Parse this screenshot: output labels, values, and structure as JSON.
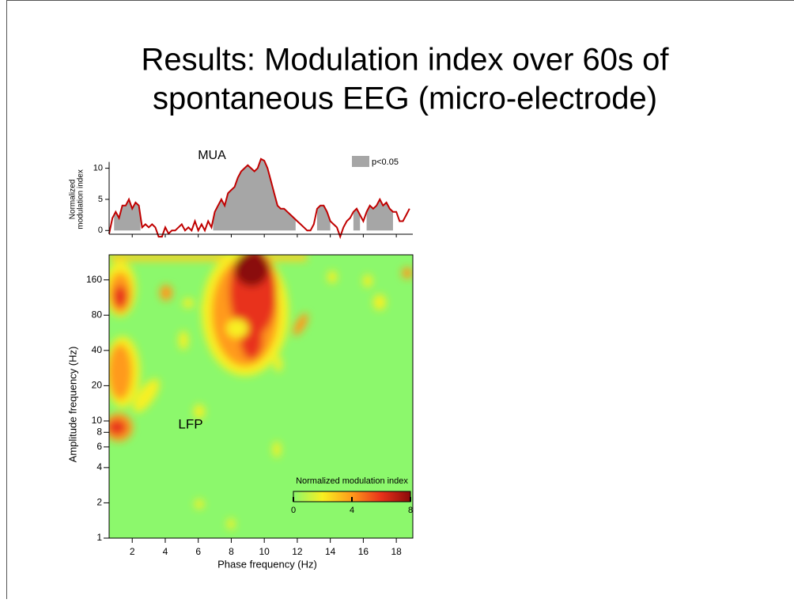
{
  "title": [
    "Results: Modulation index over 60s of",
    "spontaneous EEG (micro-electrode)"
  ],
  "chart_data": [
    {
      "type": "area",
      "annotation": "MUA",
      "ylabel": [
        "Normalized",
        "modulation index"
      ],
      "x": [
        0.6,
        0.8,
        1,
        1.2,
        1.4,
        1.6,
        1.8,
        2,
        2.2,
        2.4,
        2.6,
        2.8,
        3,
        3.2,
        3.4,
        3.6,
        3.8,
        4,
        4.2,
        4.4,
        4.6,
        4.8,
        5,
        5.2,
        5.4,
        5.6,
        5.8,
        6,
        6.2,
        6.4,
        6.6,
        6.8,
        7,
        7.2,
        7.4,
        7.6,
        7.8,
        8,
        8.2,
        8.4,
        8.6,
        8.8,
        9,
        9.2,
        9.4,
        9.6,
        9.8,
        10,
        10.2,
        10.4,
        10.6,
        10.8,
        11,
        11.2,
        11.4,
        11.6,
        11.8,
        12,
        12.2,
        12.4,
        12.6,
        12.8,
        13,
        13.2,
        13.4,
        13.6,
        13.8,
        14,
        14.2,
        14.4,
        14.6,
        14.8,
        15,
        15.2,
        15.4,
        15.6,
        15.8,
        16,
        16.2,
        16.4,
        16.6,
        16.8,
        17,
        17.2,
        17.4,
        17.6,
        17.8,
        18,
        18.2,
        18.4,
        18.6,
        18.8
      ],
      "series": [
        {
          "color": "#c00000",
          "values": [
            -0.5,
            2,
            3,
            2,
            4,
            4,
            5,
            3.5,
            4.5,
            4,
            0.5,
            1,
            0.5,
            1,
            0.5,
            -1,
            -1,
            0.5,
            -0.5,
            0,
            0,
            0.5,
            1,
            0,
            0.5,
            0,
            1.5,
            0,
            1,
            0,
            1.5,
            0.5,
            3,
            4,
            5,
            4,
            6,
            6.5,
            7,
            8.5,
            9.5,
            10,
            10.5,
            10,
            9.5,
            10,
            11.5,
            11.2,
            10,
            8,
            6,
            4,
            3.5,
            3.5,
            3,
            2.5,
            2,
            1.5,
            1,
            0.5,
            0,
            0,
            1,
            3.5,
            4,
            4,
            3,
            1.5,
            1,
            0.5,
            -1,
            0.5,
            1.5,
            2,
            3,
            3.5,
            2.5,
            1.5,
            3,
            4,
            3.5,
            4,
            5,
            4,
            4.5,
            3.5,
            3,
            3,
            1.5,
            1.5,
            2.5,
            3.5
          ]
        }
      ],
      "significance": {
        "name": "p<0.05",
        "color": "#a6a6a6",
        "ranges": [
          [
            0.9,
            2.5
          ],
          [
            6.9,
            11.9
          ],
          [
            13.2,
            14.0
          ],
          [
            15.4,
            15.8
          ],
          [
            16.2,
            17.8
          ]
        ]
      },
      "xlim": [
        0.6,
        19
      ],
      "xticks": [
        2,
        4,
        6,
        8,
        10,
        12,
        14,
        16,
        18
      ],
      "ylim": [
        -0.6,
        11.6
      ],
      "yticks": [
        0,
        5,
        10
      ]
    },
    {
      "type": "heatmap",
      "annotation": "LFP",
      "xlabel": "Phase frequency (Hz)",
      "ylabel": "Amplitude frequency (Hz)",
      "xlim": [
        0.6,
        19
      ],
      "xticks": [
        2,
        4,
        6,
        8,
        10,
        12,
        14,
        16,
        18
      ],
      "ylim": [
        1,
        262
      ],
      "yticks": [
        1,
        2,
        4,
        6,
        8,
        10,
        20,
        40,
        80,
        160
      ],
      "log_y": true,
      "background": "#8cf86c",
      "colorbar": {
        "label": "Normalized modulation index",
        "lim": [
          0,
          8
        ],
        "ticks": [
          0,
          4,
          8
        ],
        "colors": [
          "#8cf86c",
          "#f8f020",
          "#ff9a1a",
          "#e8321a",
          "#8a0a0a"
        ]
      }
    }
  ]
}
